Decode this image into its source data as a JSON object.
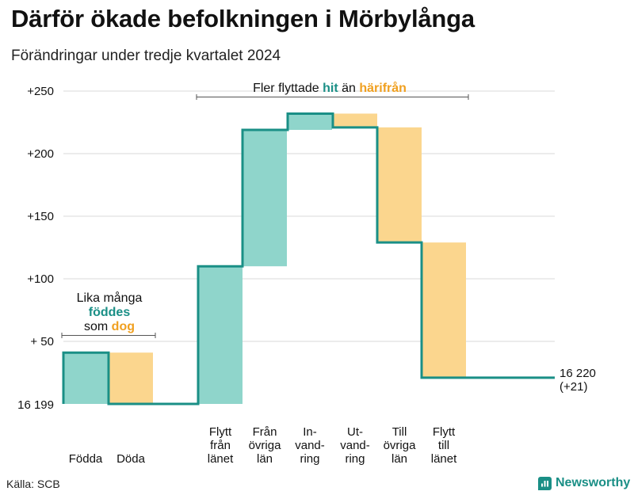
{
  "title": "Därför ökade befolkningen i Mörbylånga",
  "subtitle": "Förändringar under tredje kvartalet 2024",
  "source": "Källa: SCB",
  "brand": "Newsworthy",
  "colors": {
    "increase": "#8fd5cb",
    "decrease": "#fbd68e",
    "line": "#1a8f86",
    "teal_text": "#1a8f86",
    "orange_text": "#f0a020",
    "grid": "#d9d9d9"
  },
  "annotations": {
    "left": {
      "line1": "Lika många",
      "line2": "föddes",
      "line3a": "som ",
      "line3b": "dog"
    },
    "top": {
      "part1": "Fler flyttade ",
      "part2": "hit",
      "part3": " än ",
      "part4": "härifrån"
    },
    "end_value": "16 220",
    "end_change": "(+21)"
  },
  "chart_data": {
    "type": "waterfall",
    "baseline_label": "16 199",
    "yticks": [
      {
        "value": 50,
        "label": "+ 50"
      },
      {
        "value": 100,
        "label": "+100"
      },
      {
        "value": 150,
        "label": "+150"
      },
      {
        "value": 200,
        "label": "+200"
      },
      {
        "value": 250,
        "label": "+250"
      }
    ],
    "ylim": [
      0,
      250
    ],
    "steps": [
      {
        "label": [
          "Födda"
        ],
        "change": 41
      },
      {
        "label": [
          "Döda"
        ],
        "change": -41
      },
      {
        "label": [
          "Flytt",
          "från",
          "länet"
        ],
        "change": 110
      },
      {
        "label": [
          "Från",
          "övriga",
          "län"
        ],
        "change": 109
      },
      {
        "label": [
          "In-",
          "vand-",
          "ring"
        ],
        "change": 13
      },
      {
        "label": [
          "Ut-",
          "vand-",
          "ring"
        ],
        "change": -11
      },
      {
        "label": [
          "Till",
          "övriga",
          "län"
        ],
        "change": -92
      },
      {
        "label": [
          "Flytt",
          "till",
          "länet"
        ],
        "change": -108
      }
    ],
    "end_total": 21
  }
}
